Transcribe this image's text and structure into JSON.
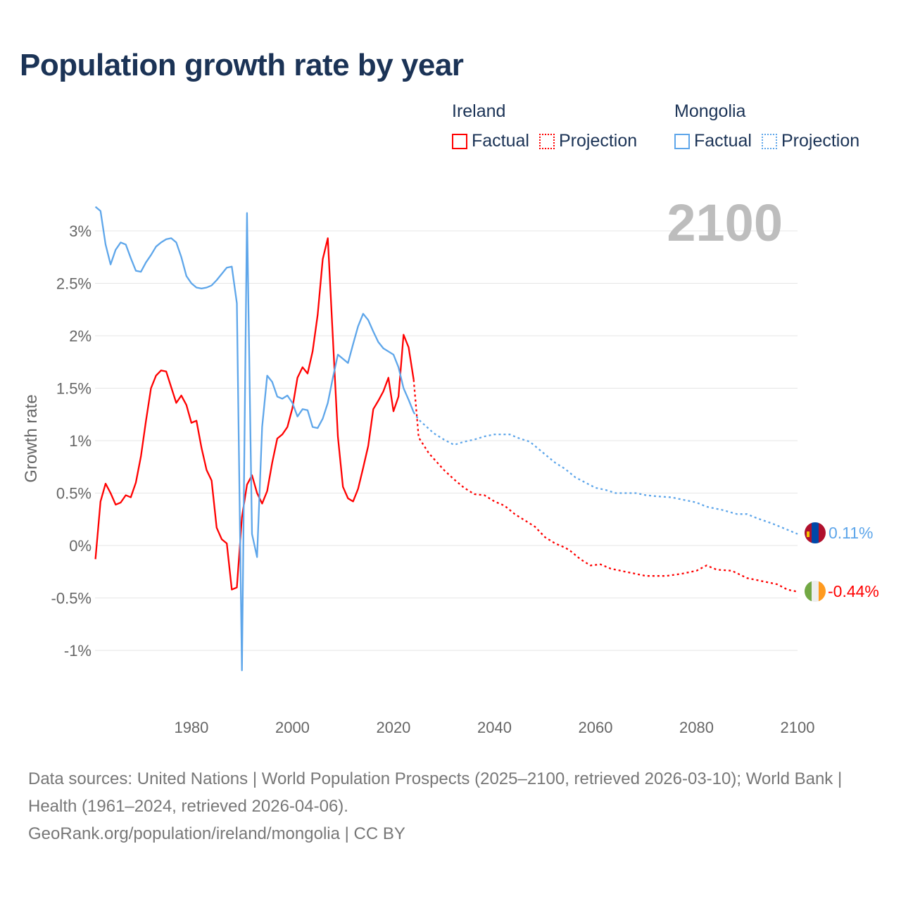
{
  "title": "Population growth rate by year",
  "legend": {
    "groups": [
      {
        "name": "Ireland",
        "factual": "Factual",
        "projection": "Projection",
        "color": "#ff0000"
      },
      {
        "name": "Mongolia",
        "factual": "Factual",
        "projection": "Projection",
        "color": "#5ea6ea"
      }
    ]
  },
  "year_label": "2100",
  "end_labels": {
    "mongolia": "0.11%",
    "ireland": "-0.44%"
  },
  "flags": {
    "mongolia": "mongolia-flag",
    "ireland": "ireland-flag"
  },
  "footer": {
    "line1": "Data sources: United Nations | World Population Prospects (2025–2100, retrieved 2026-03-10); World Bank | Health (1961–2024, retrieved 2026-04-06).",
    "line2": "GeoRank.org/population/ireland/mongolia | CC BY"
  },
  "chart_data": {
    "type": "line",
    "title": "Population growth rate by year",
    "xlabel": "",
    "ylabel": "Growth rate",
    "xlim": [
      1961,
      2100
    ],
    "ylim": [
      -1.4,
      3.3
    ],
    "x_ticks": [
      "1980",
      "2000",
      "2020",
      "2040",
      "2060",
      "2080",
      "2100"
    ],
    "y_ticks": [
      {
        "v": 3,
        "label": "3%"
      },
      {
        "v": 2.5,
        "label": "2.5%"
      },
      {
        "v": 2,
        "label": "2%"
      },
      {
        "v": 1.5,
        "label": "1.5%"
      },
      {
        "v": 1,
        "label": "1%"
      },
      {
        "v": 0.5,
        "label": "0.5%"
      },
      {
        "v": 0,
        "label": "0%"
      },
      {
        "v": -0.5,
        "label": "-0.5%"
      },
      {
        "v": -1,
        "label": "-1%"
      }
    ],
    "grid": true,
    "legend_position": "top-right",
    "series": [
      {
        "name": "Ireland Factual",
        "color": "#ff0000",
        "dashed": false,
        "start_year": 1961,
        "values": [
          -0.13,
          0.42,
          0.59,
          0.5,
          0.39,
          0.41,
          0.48,
          0.46,
          0.6,
          0.85,
          1.19,
          1.5,
          1.62,
          1.67,
          1.66,
          1.51,
          1.36,
          1.43,
          1.34,
          1.17,
          1.19,
          0.93,
          0.72,
          0.62,
          0.17,
          0.06,
          0.02,
          -0.42,
          -0.4,
          0.27,
          0.58,
          0.67,
          0.5,
          0.4,
          0.52,
          0.79,
          1.02,
          1.06,
          1.13,
          1.31,
          1.6,
          1.7,
          1.64,
          1.85,
          2.2,
          2.73,
          2.93,
          1.98,
          1.04,
          0.56,
          0.45,
          0.42,
          0.54,
          0.74,
          0.95,
          1.3,
          1.38,
          1.47,
          1.6,
          1.28,
          1.42,
          2.01,
          1.89,
          1.58
        ]
      },
      {
        "name": "Ireland Projection",
        "color": "#ff0000",
        "dashed": true,
        "points": [
          [
            2024,
            1.58
          ],
          [
            2025,
            1.03
          ],
          [
            2027,
            0.88
          ],
          [
            2030,
            0.72
          ],
          [
            2032,
            0.63
          ],
          [
            2034,
            0.55
          ],
          [
            2036,
            0.49
          ],
          [
            2038,
            0.48
          ],
          [
            2040,
            0.42
          ],
          [
            2042,
            0.38
          ],
          [
            2044,
            0.3
          ],
          [
            2046,
            0.24
          ],
          [
            2048,
            0.18
          ],
          [
            2050,
            0.08
          ],
          [
            2052,
            0.02
          ],
          [
            2054,
            -0.02
          ],
          [
            2055,
            -0.05
          ],
          [
            2057,
            -0.13
          ],
          [
            2059,
            -0.19
          ],
          [
            2061,
            -0.18
          ],
          [
            2063,
            -0.22
          ],
          [
            2066,
            -0.25
          ],
          [
            2070,
            -0.29
          ],
          [
            2074,
            -0.29
          ],
          [
            2077,
            -0.27
          ],
          [
            2080,
            -0.24
          ],
          [
            2082,
            -0.19
          ],
          [
            2084,
            -0.23
          ],
          [
            2087,
            -0.24
          ],
          [
            2090,
            -0.31
          ],
          [
            2094,
            -0.35
          ],
          [
            2096,
            -0.37
          ],
          [
            2098,
            -0.42
          ],
          [
            2100,
            -0.44
          ]
        ]
      },
      {
        "name": "Mongolia Factual",
        "color": "#5ea6ea",
        "dashed": false,
        "start_year": 1961,
        "values": [
          3.23,
          3.19,
          2.87,
          2.68,
          2.82,
          2.89,
          2.87,
          2.74,
          2.62,
          2.61,
          2.7,
          2.77,
          2.85,
          2.89,
          2.92,
          2.93,
          2.89,
          2.75,
          2.57,
          2.5,
          2.46,
          2.45,
          2.46,
          2.48,
          2.53,
          2.59,
          2.65,
          2.66,
          2.31,
          -1.19,
          3.17,
          0.11,
          -0.11,
          1.13,
          1.62,
          1.56,
          1.42,
          1.4,
          1.43,
          1.36,
          1.23,
          1.3,
          1.29,
          1.13,
          1.12,
          1.21,
          1.36,
          1.6,
          1.82,
          1.78,
          1.74,
          1.92,
          2.09,
          2.21,
          2.15,
          2.04,
          1.94,
          1.88,
          1.85,
          1.82,
          1.7,
          1.5,
          1.39,
          1.27
        ]
      },
      {
        "name": "Mongolia Projection",
        "color": "#5ea6ea",
        "dashed": true,
        "points": [
          [
            2024,
            1.27
          ],
          [
            2025,
            1.2
          ],
          [
            2028,
            1.07
          ],
          [
            2030,
            1.01
          ],
          [
            2032,
            0.96
          ],
          [
            2034,
            0.99
          ],
          [
            2036,
            1.01
          ],
          [
            2038,
            1.04
          ],
          [
            2040,
            1.06
          ],
          [
            2043,
            1.06
          ],
          [
            2045,
            1.02
          ],
          [
            2047,
            0.99
          ],
          [
            2050,
            0.87
          ],
          [
            2052,
            0.79
          ],
          [
            2054,
            0.73
          ],
          [
            2056,
            0.65
          ],
          [
            2058,
            0.6
          ],
          [
            2060,
            0.55
          ],
          [
            2062,
            0.53
          ],
          [
            2064,
            0.5
          ],
          [
            2066,
            0.5
          ],
          [
            2068,
            0.5
          ],
          [
            2070,
            0.48
          ],
          [
            2072,
            0.47
          ],
          [
            2075,
            0.46
          ],
          [
            2078,
            0.43
          ],
          [
            2080,
            0.41
          ],
          [
            2082,
            0.37
          ],
          [
            2085,
            0.34
          ],
          [
            2088,
            0.3
          ],
          [
            2090,
            0.3
          ],
          [
            2092,
            0.26
          ],
          [
            2095,
            0.21
          ],
          [
            2098,
            0.15
          ],
          [
            2100,
            0.11
          ]
        ]
      }
    ]
  }
}
